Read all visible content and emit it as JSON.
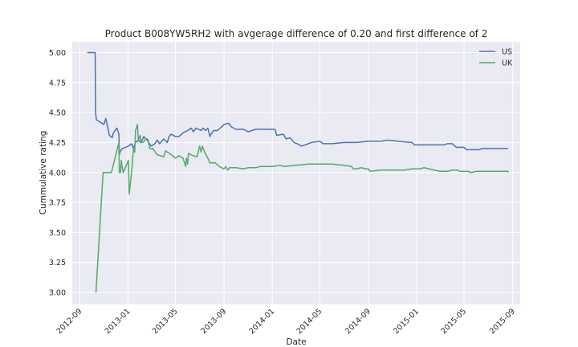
{
  "chart_data": {
    "type": "line",
    "title": "Product B008YW5RH2 with avgerage difference of 0.20 and first difference of 2",
    "xlabel": "Date",
    "ylabel": "Cummulative rating",
    "xlim": [
      "2012-08-13",
      "2015-09-20"
    ],
    "ylim": [
      2.9,
      5.09
    ],
    "x_ticks": [
      "2012-09-01",
      "2013-01-01",
      "2013-05-01",
      "2013-09-01",
      "2014-01-01",
      "2014-05-01",
      "2014-09-01",
      "2015-01-01",
      "2015-05-01",
      "2015-09-01"
    ],
    "x_tick_labels": [
      "2012-09",
      "2013-01",
      "2013-05",
      "2013-09",
      "2014-01",
      "2014-05",
      "2014-09",
      "2015-01",
      "2015-05",
      "2015-09"
    ],
    "y_ticks": [
      3.0,
      3.25,
      3.5,
      3.75,
      4.0,
      4.25,
      4.5,
      4.75,
      5.0
    ],
    "y_tick_labels": [
      "3.00",
      "3.25",
      "3.50",
      "3.75",
      "4.00",
      "4.25",
      "4.50",
      "4.75",
      "5.00"
    ],
    "grid": true,
    "background": "#eaeaf2",
    "legend_placement": "top-right",
    "series": [
      {
        "name": "US",
        "color": "#4c72b0",
        "points": [
          [
            "2012-09-20",
            5.0
          ],
          [
            "2012-10-10",
            5.0
          ],
          [
            "2012-10-11",
            4.5
          ],
          [
            "2012-10-13",
            4.44
          ],
          [
            "2012-11-01",
            4.4
          ],
          [
            "2012-11-06",
            4.45
          ],
          [
            "2012-11-15",
            4.31
          ],
          [
            "2012-11-22",
            4.29
          ],
          [
            "2012-11-25",
            4.33
          ],
          [
            "2012-12-04",
            4.37
          ],
          [
            "2012-12-09",
            4.32
          ],
          [
            "2012-12-10",
            4.15
          ],
          [
            "2012-12-13",
            4.18
          ],
          [
            "2012-12-18",
            4.2
          ],
          [
            "2013-01-02",
            4.22
          ],
          [
            "2013-01-10",
            4.24
          ],
          [
            "2013-01-15",
            4.2
          ],
          [
            "2013-01-20",
            4.25
          ],
          [
            "2013-01-27",
            4.27
          ],
          [
            "2013-02-03",
            4.25
          ],
          [
            "2013-02-10",
            4.3
          ],
          [
            "2013-02-18",
            4.27
          ],
          [
            "2013-03-01",
            4.22
          ],
          [
            "2013-03-10",
            4.24
          ],
          [
            "2013-03-16",
            4.27
          ],
          [
            "2013-03-22",
            4.24
          ],
          [
            "2013-04-01",
            4.28
          ],
          [
            "2013-04-10",
            4.25
          ],
          [
            "2013-04-15",
            4.3
          ],
          [
            "2013-04-20",
            4.32
          ],
          [
            "2013-05-01",
            4.3
          ],
          [
            "2013-05-10",
            4.3
          ],
          [
            "2013-05-20",
            4.33
          ],
          [
            "2013-06-01",
            4.35
          ],
          [
            "2013-06-10",
            4.37
          ],
          [
            "2013-06-15",
            4.34
          ],
          [
            "2013-06-22",
            4.37
          ],
          [
            "2013-07-05",
            4.35
          ],
          [
            "2013-07-10",
            4.37
          ],
          [
            "2013-07-16",
            4.35
          ],
          [
            "2013-07-22",
            4.37
          ],
          [
            "2013-07-27",
            4.3
          ],
          [
            "2013-08-01",
            4.33
          ],
          [
            "2013-08-06",
            4.35
          ],
          [
            "2013-08-15",
            4.35
          ],
          [
            "2013-08-22",
            4.37
          ],
          [
            "2013-09-01",
            4.4
          ],
          [
            "2013-09-12",
            4.41
          ],
          [
            "2013-09-20",
            4.38
          ],
          [
            "2013-10-01",
            4.36
          ],
          [
            "2013-10-20",
            4.36
          ],
          [
            "2013-11-01",
            4.34
          ],
          [
            "2013-11-20",
            4.36
          ],
          [
            "2013-12-10",
            4.36
          ],
          [
            "2014-01-01",
            4.36
          ],
          [
            "2014-01-08",
            4.36
          ],
          [
            "2014-01-12",
            4.31
          ],
          [
            "2014-01-29",
            4.32
          ],
          [
            "2014-02-05",
            4.28
          ],
          [
            "2014-02-15",
            4.29
          ],
          [
            "2014-02-25",
            4.25
          ],
          [
            "2014-03-05",
            4.24
          ],
          [
            "2014-03-15",
            4.22
          ],
          [
            "2014-03-25",
            4.23
          ],
          [
            "2014-04-10",
            4.25
          ],
          [
            "2014-05-01",
            4.26
          ],
          [
            "2014-05-10",
            4.24
          ],
          [
            "2014-06-01",
            4.24
          ],
          [
            "2014-07-01",
            4.25
          ],
          [
            "2014-08-01",
            4.25
          ],
          [
            "2014-09-01",
            4.26
          ],
          [
            "2014-10-01",
            4.26
          ],
          [
            "2014-10-20",
            4.27
          ],
          [
            "2014-11-15",
            4.26
          ],
          [
            "2014-12-20",
            4.25
          ],
          [
            "2014-12-27",
            4.23
          ],
          [
            "2015-01-20",
            4.23
          ],
          [
            "2015-02-20",
            4.23
          ],
          [
            "2015-03-10",
            4.23
          ],
          [
            "2015-03-20",
            4.24
          ],
          [
            "2015-04-01",
            4.24
          ],
          [
            "2015-04-12",
            4.21
          ],
          [
            "2015-04-30",
            4.21
          ],
          [
            "2015-05-08",
            4.19
          ],
          [
            "2015-05-15",
            4.19
          ],
          [
            "2015-06-08",
            4.19
          ],
          [
            "2015-06-15",
            4.2
          ],
          [
            "2015-07-01",
            4.2
          ],
          [
            "2015-08-01",
            4.2
          ],
          [
            "2015-08-20",
            4.2
          ]
        ]
      },
      {
        "name": "UK",
        "color": "#55a868",
        "points": [
          [
            "2012-10-12",
            3.0
          ],
          [
            "2012-10-30",
            4.0
          ],
          [
            "2012-11-20",
            4.0
          ],
          [
            "2012-12-09",
            4.25
          ],
          [
            "2012-12-10",
            4.0
          ],
          [
            "2012-12-13",
            4.0
          ],
          [
            "2012-12-15",
            4.1
          ],
          [
            "2012-12-17",
            4.05
          ],
          [
            "2012-12-20",
            4.0
          ],
          [
            "2013-01-02",
            4.1
          ],
          [
            "2013-01-04",
            3.82
          ],
          [
            "2013-01-10",
            4.0
          ],
          [
            "2013-01-15",
            4.2
          ],
          [
            "2013-01-18",
            4.17
          ],
          [
            "2013-01-20",
            4.35
          ],
          [
            "2013-01-25",
            4.4
          ],
          [
            "2013-01-27",
            4.27
          ],
          [
            "2013-02-01",
            4.31
          ],
          [
            "2013-02-03",
            4.25
          ],
          [
            "2013-02-08",
            4.25
          ],
          [
            "2013-02-15",
            4.28
          ],
          [
            "2013-02-20",
            4.28
          ],
          [
            "2013-02-25",
            4.2
          ],
          [
            "2013-03-05",
            4.2
          ],
          [
            "2013-03-15",
            4.15
          ],
          [
            "2013-04-01",
            4.13
          ],
          [
            "2013-04-06",
            4.18
          ],
          [
            "2013-04-20",
            4.15
          ],
          [
            "2013-05-01",
            4.12
          ],
          [
            "2013-05-10",
            4.14
          ],
          [
            "2013-05-20",
            4.12
          ],
          [
            "2013-05-27",
            4.05
          ],
          [
            "2013-05-29",
            4.12
          ],
          [
            "2013-06-01",
            4.07
          ],
          [
            "2013-06-03",
            4.16
          ],
          [
            "2013-06-08",
            4.15
          ],
          [
            "2013-06-15",
            4.14
          ],
          [
            "2013-06-25",
            4.13
          ],
          [
            "2013-07-01",
            4.22
          ],
          [
            "2013-07-05",
            4.17
          ],
          [
            "2013-07-08",
            4.22
          ],
          [
            "2013-07-15",
            4.16
          ],
          [
            "2013-07-22",
            4.12
          ],
          [
            "2013-07-27",
            4.08
          ],
          [
            "2013-08-10",
            4.08
          ],
          [
            "2013-08-20",
            4.05
          ],
          [
            "2013-09-01",
            4.03
          ],
          [
            "2013-09-05",
            4.05
          ],
          [
            "2013-09-10",
            4.02
          ],
          [
            "2013-09-15",
            4.04
          ],
          [
            "2013-10-01",
            4.04
          ],
          [
            "2013-10-20",
            4.03
          ],
          [
            "2013-11-01",
            4.04
          ],
          [
            "2013-11-20",
            4.04
          ],
          [
            "2013-12-01",
            4.05
          ],
          [
            "2013-12-20",
            4.05
          ],
          [
            "2014-01-01",
            4.05
          ],
          [
            "2014-01-20",
            4.06
          ],
          [
            "2014-02-01",
            4.05
          ],
          [
            "2014-03-01",
            4.06
          ],
          [
            "2014-04-01",
            4.07
          ],
          [
            "2014-05-01",
            4.07
          ],
          [
            "2014-06-01",
            4.07
          ],
          [
            "2014-07-01",
            4.06
          ],
          [
            "2014-07-20",
            4.05
          ],
          [
            "2014-07-25",
            4.03
          ],
          [
            "2014-08-01",
            4.03
          ],
          [
            "2014-08-15",
            4.04
          ],
          [
            "2014-08-25",
            4.03
          ],
          [
            "2014-09-01",
            4.03
          ],
          [
            "2014-09-05",
            4.01
          ],
          [
            "2014-10-01",
            4.02
          ],
          [
            "2014-11-01",
            4.02
          ],
          [
            "2014-12-01",
            4.02
          ],
          [
            "2014-12-20",
            4.03
          ],
          [
            "2015-01-10",
            4.03
          ],
          [
            "2015-01-20",
            4.04
          ],
          [
            "2015-02-01",
            4.03
          ],
          [
            "2015-02-15",
            4.02
          ],
          [
            "2015-03-01",
            4.01
          ],
          [
            "2015-03-20",
            4.01
          ],
          [
            "2015-04-01",
            4.02
          ],
          [
            "2015-04-15",
            4.02
          ],
          [
            "2015-04-20",
            4.01
          ],
          [
            "2015-05-01",
            4.01
          ],
          [
            "2015-05-10",
            4.01
          ],
          [
            "2015-05-20",
            4.0
          ],
          [
            "2015-06-01",
            4.01
          ],
          [
            "2015-06-15",
            4.01
          ],
          [
            "2015-07-01",
            4.01
          ],
          [
            "2015-08-01",
            4.01
          ],
          [
            "2015-08-20",
            4.01
          ],
          [
            "2015-08-21",
            4.0
          ]
        ]
      }
    ]
  }
}
